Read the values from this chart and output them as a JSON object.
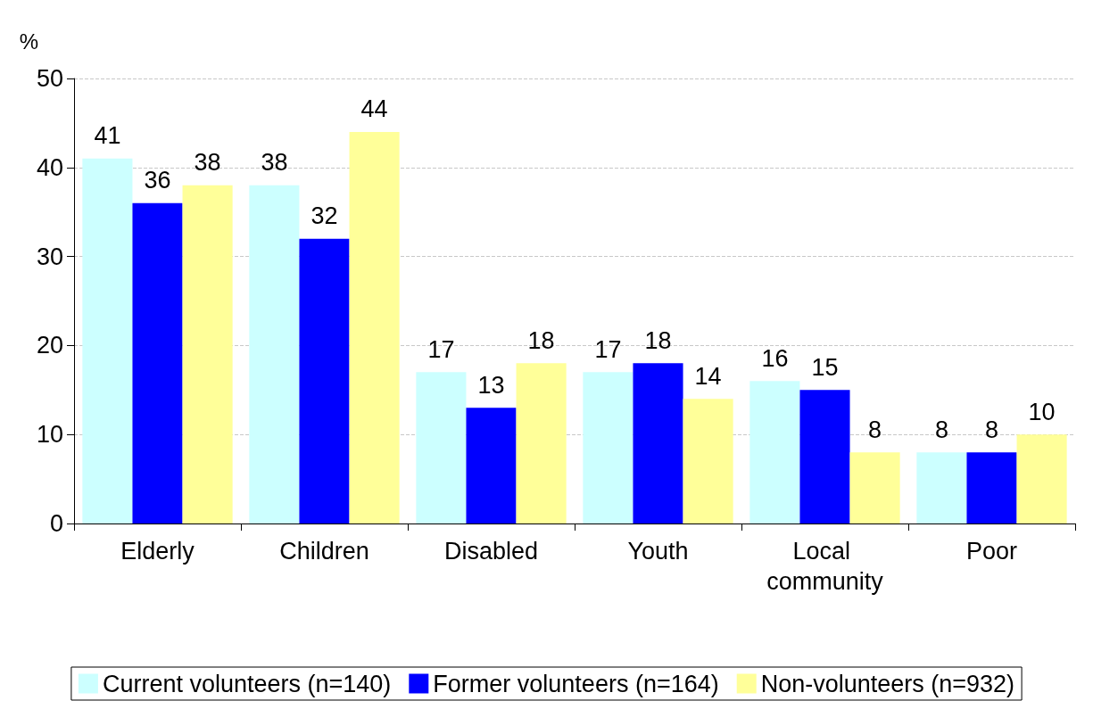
{
  "chart_data": {
    "type": "bar",
    "ylabel": "%",
    "categories": [
      "Elderly",
      "Children",
      "Disabled",
      "Youth",
      "Local community",
      "Poor"
    ],
    "series": [
      {
        "name": "Current volunteers (n=140)",
        "color": "#ccffff",
        "values": [
          41,
          38,
          17,
          17,
          16,
          8
        ]
      },
      {
        "name": "Former volunteers (n=164)",
        "color": "#0000ff",
        "values": [
          36,
          32,
          13,
          18,
          15,
          8
        ]
      },
      {
        "name": "Non-volunteers (n=932)",
        "color": "#ffff99",
        "values": [
          38,
          44,
          18,
          14,
          8,
          10
        ]
      }
    ],
    "ylim": [
      0,
      50
    ],
    "yticks": [
      0,
      10,
      20,
      30,
      40,
      50
    ],
    "grid": "y",
    "legend": "bottom",
    "data_labels": true
  }
}
